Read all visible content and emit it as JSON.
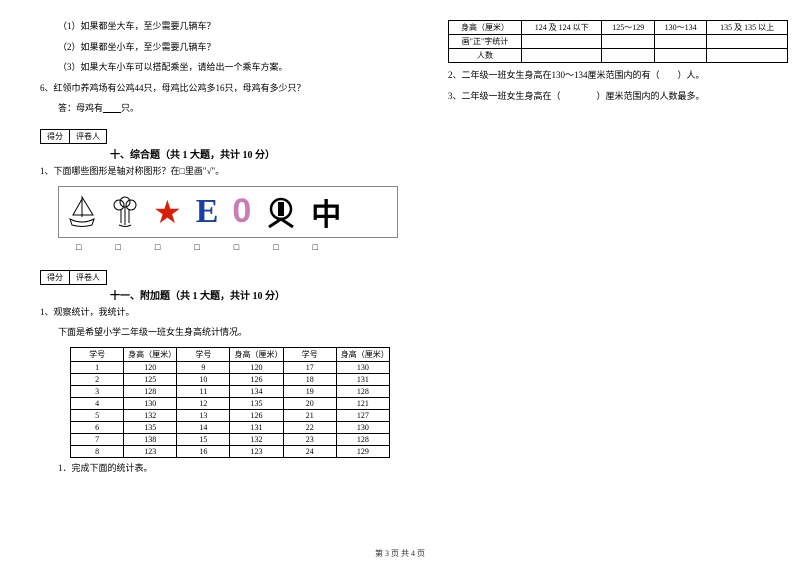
{
  "left": {
    "q1": "（1）如果都坐大车，至少需要几辆车？",
    "q2": "（2）如果都坐小车，至少需要几辆车？",
    "q3": "（3）如果大车小车可以搭配乘坐，请给出一个乘车方案。",
    "q6": "6、红领巾养鸡场有公鸡44只，母鸡比公鸡多16只，母鸡有多少只？",
    "ans_prefix": "答：母鸡有",
    "ans_suffix": "只。",
    "score_label1": "得分",
    "score_label2": "评卷人",
    "section10": "十、综合题（共 1 大题，共计 10 分）",
    "s10_q1": "1、下面哪些图形是轴对称图形？在□里画\"√\"。",
    "checkbox": "□",
    "section11": "十一、附加题（共 1 大题，共计 10 分）",
    "s11_q1a": "1、观察统计，我统计。",
    "s11_q1b": "下面是希望小学二年级一班女生身高统计情况。",
    "table_headers": [
      "学号",
      "身高（厘米）",
      "学号",
      "身高（厘米）",
      "学号",
      "身高（厘米）"
    ],
    "table_rows": [
      [
        "1",
        "120",
        "9",
        "120",
        "17",
        "130"
      ],
      [
        "2",
        "125",
        "10",
        "126",
        "18",
        "131"
      ],
      [
        "3",
        "128",
        "11",
        "134",
        "19",
        "128"
      ],
      [
        "4",
        "130",
        "12",
        "135",
        "20",
        "121"
      ],
      [
        "5",
        "132",
        "13",
        "126",
        "21",
        "127"
      ],
      [
        "6",
        "135",
        "14",
        "131",
        "22",
        "130"
      ],
      [
        "7",
        "138",
        "15",
        "132",
        "23",
        "128"
      ],
      [
        "8",
        "123",
        "16",
        "123",
        "24",
        "129"
      ]
    ],
    "s11_sub1": "1．完成下面的统计表。"
  },
  "right": {
    "tally_col0": "身高（厘米）",
    "tally_cols": [
      "124 及 124 以下",
      "125～129",
      "130～134",
      "135 及 135 以上"
    ],
    "tally_row1": "画\"正\"字统计",
    "tally_row2": "人数",
    "r_q2": "2、二年级一班女生身高在130～134厘米范围内的有（　　）人。",
    "r_q3": "3、二年级一班女生身高在（　　　　）厘米范围内的人数最多。"
  },
  "footer": "第 3 页 共 4 页",
  "colors": {
    "star": "#d81e06",
    "letterE": "#1b3fa0",
    "zero": "#c77db8"
  }
}
